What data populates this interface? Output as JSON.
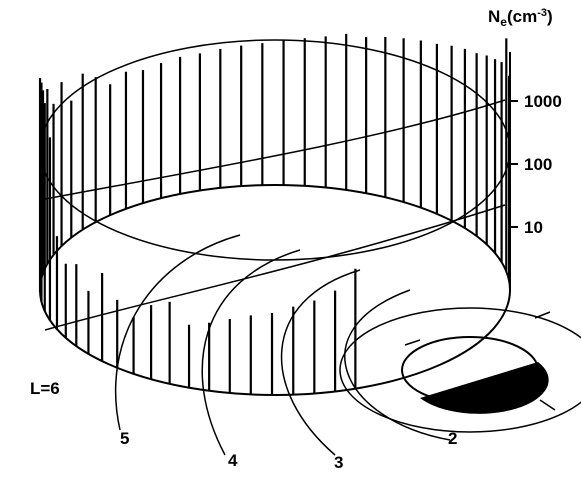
{
  "chart_data": {
    "type": "orbit-profile",
    "ylabel_parts": [
      "N",
      "e",
      "(cm",
      "-3",
      ")"
    ],
    "log_scale": true,
    "ylim": [
      1,
      6000
    ],
    "yticks": [
      10,
      100,
      1000
    ],
    "color": "#000000",
    "values": [
      1800,
      5000,
      1500,
      1200,
      1000,
      800,
      700,
      600,
      500,
      450,
      400,
      350,
      300,
      300,
      250,
      220,
      200,
      180,
      170,
      160,
      150,
      150,
      140,
      130,
      150,
      120,
      200,
      300,
      150,
      400,
      250,
      600,
      800,
      1500,
      2500,
      3000,
      2000,
      800,
      30,
      15,
      20,
      10,
      25,
      12,
      8,
      15,
      20,
      10,
      12,
      15,
      18,
      20,
      25,
      30,
      40,
      80
    ],
    "l_shells": [
      "L=6",
      "5",
      "4",
      "3",
      "2"
    ]
  }
}
